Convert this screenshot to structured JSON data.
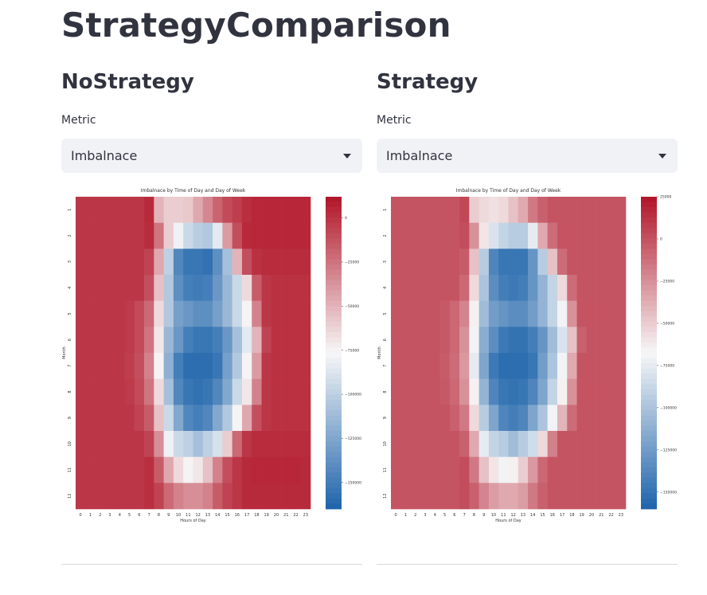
{
  "page_title": "StrategyComparison",
  "panels": [
    {
      "heading": "NoStrategy",
      "metric_label": "Metric",
      "metric_value": "Imbalnace",
      "chart_data": {
        "type": "heatmap",
        "title": "Imbalnace by Time of Day and Day of Week",
        "xlabel": "Hours of Day",
        "ylabel": "Month",
        "x": [
          0,
          1,
          2,
          3,
          4,
          5,
          6,
          7,
          8,
          9,
          10,
          11,
          12,
          13,
          14,
          15,
          16,
          17,
          18,
          19,
          20,
          21,
          22,
          23
        ],
        "y": [
          1,
          2,
          3,
          4,
          5,
          6,
          7,
          8,
          9,
          10,
          11,
          12
        ],
        "colorbar_ticks": [
          0,
          -25000,
          -50000,
          -75000,
          -100000,
          -125000,
          -150000
        ],
        "colorbar_range": [
          -165000,
          12000
        ],
        "colormap": [
          "#2166ac",
          "#f7f7f7",
          "#b2182b"
        ],
        "values": [
          [
            0,
            0,
            0,
            0,
            0,
            0,
            0,
            5000,
            -50000,
            -60000,
            -60000,
            -58000,
            -45000,
            -32000,
            -18000,
            -8000,
            -3000,
            3000,
            6000,
            6000,
            6000,
            6000,
            6000,
            6000
          ],
          [
            0,
            0,
            0,
            0,
            0,
            0,
            0,
            4000,
            -25000,
            -60000,
            -80000,
            -95000,
            -102000,
            -105000,
            -85000,
            -40000,
            -10000,
            5000,
            6000,
            6000,
            6000,
            6000,
            6000,
            6000
          ],
          [
            0,
            0,
            0,
            0,
            0,
            0,
            0,
            -5000,
            -45000,
            -100000,
            -145000,
            -155000,
            -155000,
            -158000,
            -140000,
            -110000,
            -50000,
            -10000,
            2000,
            4000,
            4000,
            4000,
            4000,
            4000
          ],
          [
            0,
            0,
            0,
            0,
            0,
            0,
            0,
            -10000,
            -55000,
            -105000,
            -140000,
            -150000,
            -152000,
            -150000,
            -135000,
            -115000,
            -95000,
            -65000,
            -15000,
            0,
            2000,
            2000,
            2000,
            2000
          ],
          [
            0,
            0,
            0,
            0,
            0,
            -2000,
            -8000,
            -20000,
            -65000,
            -105000,
            -130000,
            -135000,
            -140000,
            -140000,
            -130000,
            -115000,
            -95000,
            -75000,
            -30000,
            0,
            2000,
            2000,
            2000,
            2000
          ],
          [
            0,
            0,
            0,
            0,
            0,
            -2000,
            -8000,
            -25000,
            -70000,
            -115000,
            -135000,
            -150000,
            -155000,
            -155000,
            -150000,
            -135000,
            -110000,
            -85000,
            -50000,
            -5000,
            2000,
            2000,
            2000,
            2000
          ],
          [
            0,
            0,
            0,
            0,
            0,
            -3000,
            -10000,
            -30000,
            -75000,
            -120000,
            -150000,
            -160000,
            -160000,
            -160000,
            -155000,
            -130000,
            -105000,
            -75000,
            -40000,
            0,
            2000,
            2000,
            2000,
            2000
          ],
          [
            0,
            0,
            0,
            0,
            0,
            -2000,
            -8000,
            -25000,
            -65000,
            -110000,
            -145000,
            -155000,
            -158000,
            -155000,
            -145000,
            -125000,
            -95000,
            -70000,
            -30000,
            0,
            2000,
            2000,
            2000,
            2000
          ],
          [
            0,
            0,
            0,
            0,
            0,
            0,
            -5000,
            -15000,
            -55000,
            -95000,
            -125000,
            -145000,
            -150000,
            -145000,
            -125000,
            -105000,
            -75000,
            -45000,
            -10000,
            0,
            2000,
            2000,
            2000,
            2000
          ],
          [
            0,
            0,
            0,
            0,
            0,
            0,
            0,
            -5000,
            -35000,
            -80000,
            -95000,
            -100000,
            -110000,
            -100000,
            -90000,
            -60000,
            -20000,
            0,
            4000,
            4000,
            4000,
            4000,
            4000,
            4000
          ],
          [
            0,
            0,
            0,
            0,
            0,
            0,
            0,
            3000,
            -15000,
            -45000,
            -65000,
            -75000,
            -70000,
            -55000,
            -30000,
            -10000,
            0,
            5000,
            6000,
            6000,
            6000,
            6000,
            6000,
            5000
          ],
          [
            0,
            0,
            0,
            0,
            0,
            0,
            0,
            3000,
            -5000,
            -20000,
            -30000,
            -35000,
            -35000,
            -30000,
            -15000,
            -5000,
            0,
            5000,
            5000,
            5000,
            5000,
            5000,
            5000,
            5000
          ]
        ]
      }
    },
    {
      "heading": "Strategy",
      "metric_label": "Metric",
      "metric_value": "Imbalnace",
      "chart_data": {
        "type": "heatmap",
        "title": "Imbalnace by Time of Day and Day of Week",
        "xlabel": "Hours of Day",
        "ylabel": "Month",
        "x": [
          0,
          1,
          2,
          3,
          4,
          5,
          6,
          7,
          8,
          9,
          10,
          11,
          12,
          13,
          14,
          15,
          16,
          17,
          18,
          19,
          20,
          21,
          22,
          23
        ],
        "y": [
          1,
          2,
          3,
          4,
          5,
          6,
          7,
          8,
          9,
          10,
          11,
          12
        ],
        "colorbar_ticks": [
          25000,
          0,
          -25000,
          -50000,
          -75000,
          -100000,
          -125000,
          -150000
        ],
        "colorbar_range": [
          -160000,
          25000
        ],
        "colormap": [
          "#2166ac",
          "#f7f7f7",
          "#b2182b"
        ],
        "values": [
          [
            0,
            0,
            0,
            0,
            0,
            0,
            0,
            5000,
            -50000,
            -55000,
            -58000,
            -55000,
            -45000,
            -35000,
            -15000,
            -5000,
            0,
            0,
            0,
            0,
            0,
            0,
            0,
            0
          ],
          [
            0,
            0,
            0,
            0,
            0,
            0,
            0,
            3000,
            -25000,
            -60000,
            -80000,
            -90000,
            -95000,
            -95000,
            -75000,
            -35000,
            -10000,
            0,
            0,
            0,
            0,
            0,
            0,
            0
          ],
          [
            0,
            0,
            0,
            0,
            0,
            0,
            0,
            -3000,
            -45000,
            -95000,
            -140000,
            -150000,
            -150000,
            -150000,
            -130000,
            -95000,
            -45000,
            -10000,
            0,
            0,
            0,
            0,
            0,
            0
          ],
          [
            0,
            0,
            0,
            0,
            0,
            0,
            0,
            -8000,
            -55000,
            -100000,
            -135000,
            -145000,
            -148000,
            -145000,
            -130000,
            -110000,
            -90000,
            -55000,
            -10000,
            0,
            0,
            0,
            0,
            0
          ],
          [
            0,
            0,
            0,
            0,
            0,
            -2000,
            -8000,
            -20000,
            -65000,
            -105000,
            -125000,
            -130000,
            -135000,
            -135000,
            -125000,
            -110000,
            -90000,
            -70000,
            -25000,
            0,
            0,
            0,
            0,
            0
          ],
          [
            0,
            0,
            0,
            0,
            0,
            -2000,
            -8000,
            -25000,
            -70000,
            -115000,
            -135000,
            -148000,
            -152000,
            -152000,
            -145000,
            -130000,
            -105000,
            -80000,
            -45000,
            -5000,
            0,
            0,
            0,
            0
          ],
          [
            0,
            0,
            0,
            0,
            0,
            -3000,
            -10000,
            -28000,
            -75000,
            -120000,
            -148000,
            -155000,
            -155000,
            -155000,
            -150000,
            -125000,
            -100000,
            -70000,
            -35000,
            0,
            0,
            0,
            0,
            0
          ],
          [
            0,
            0,
            0,
            0,
            0,
            -2000,
            -8000,
            -25000,
            -65000,
            -110000,
            -140000,
            -150000,
            -152000,
            -150000,
            -140000,
            -120000,
            -90000,
            -65000,
            -25000,
            0,
            0,
            0,
            0,
            0
          ],
          [
            0,
            0,
            0,
            0,
            0,
            0,
            -5000,
            -15000,
            -55000,
            -95000,
            -120000,
            -140000,
            -145000,
            -140000,
            -120000,
            -100000,
            -70000,
            -40000,
            -10000,
            0,
            0,
            0,
            0,
            0
          ],
          [
            0,
            0,
            0,
            0,
            0,
            0,
            0,
            -5000,
            -35000,
            -75000,
            -90000,
            -95000,
            -105000,
            -95000,
            -85000,
            -55000,
            -18000,
            0,
            0,
            0,
            0,
            0,
            0,
            0
          ],
          [
            0,
            0,
            0,
            0,
            0,
            0,
            0,
            3000,
            -15000,
            -45000,
            -60000,
            -70000,
            -65000,
            -50000,
            -28000,
            -8000,
            0,
            0,
            0,
            0,
            0,
            0,
            0,
            0
          ],
          [
            0,
            0,
            0,
            0,
            0,
            0,
            0,
            3000,
            -5000,
            -20000,
            -30000,
            -35000,
            -35000,
            -30000,
            -15000,
            -5000,
            0,
            0,
            0,
            0,
            0,
            0,
            0,
            0
          ]
        ]
      }
    }
  ]
}
